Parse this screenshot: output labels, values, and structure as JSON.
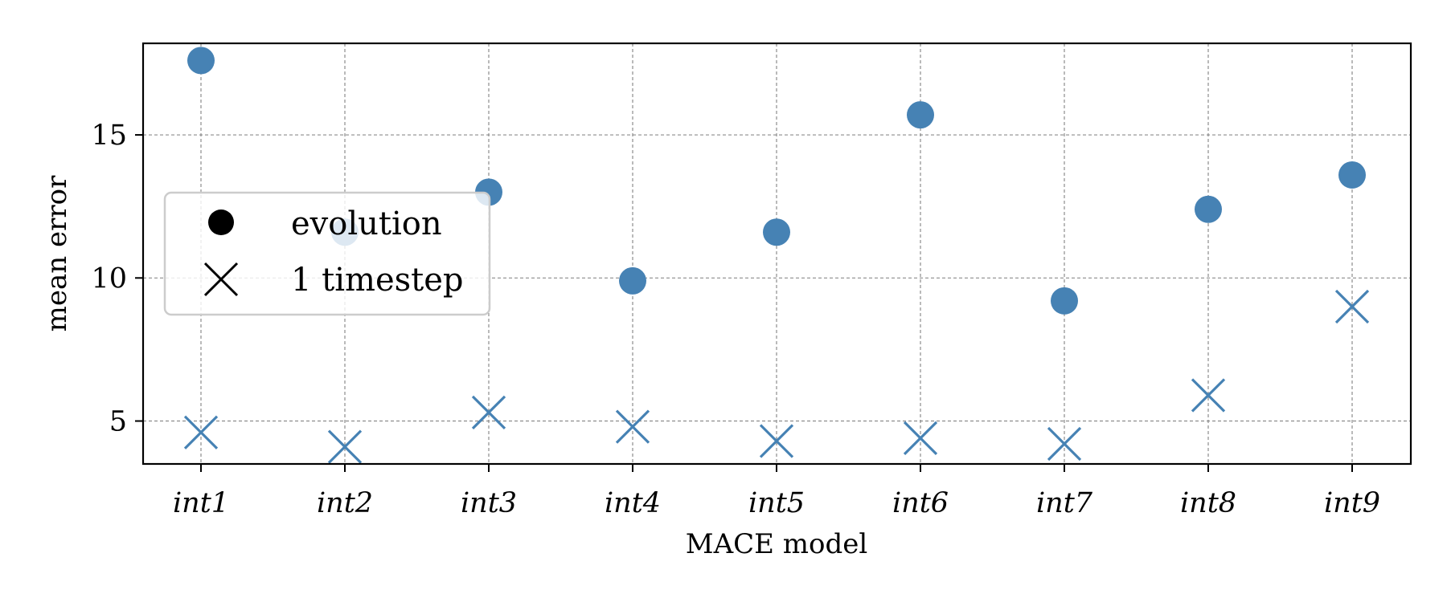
{
  "chart_data": {
    "type": "scatter",
    "title": "",
    "xlabel": "MACE model",
    "ylabel": "mean error",
    "categories": [
      "int1",
      "int2",
      "int3",
      "int4",
      "int5",
      "int6",
      "int7",
      "int8",
      "int9"
    ],
    "ylim": [
      3.5,
      18.2
    ],
    "yticks": [
      5,
      10,
      15
    ],
    "grid": true,
    "legend_position": "center-left",
    "series": [
      {
        "name": "evolution",
        "marker": "circle",
        "color": "#4682b4",
        "values": [
          17.6,
          11.6,
          13.0,
          9.9,
          11.6,
          15.7,
          9.2,
          12.4,
          13.6
        ]
      },
      {
        "name": "1 timestep",
        "marker": "x",
        "color": "#4682b4",
        "values": [
          4.6,
          4.1,
          5.3,
          4.8,
          4.3,
          4.4,
          4.2,
          5.9,
          9.0
        ]
      }
    ]
  }
}
